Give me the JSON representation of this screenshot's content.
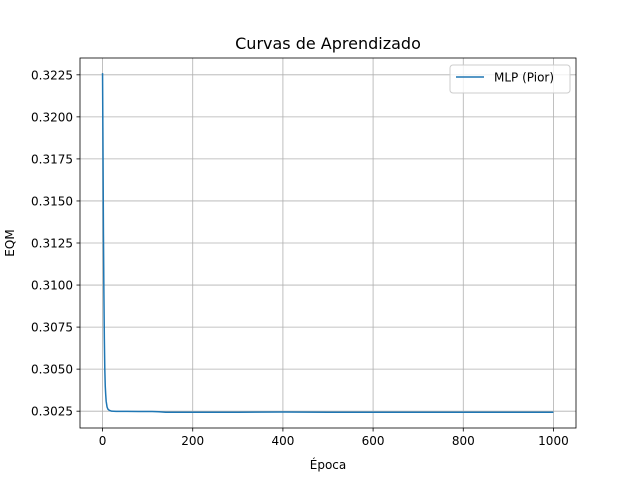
{
  "chart_data": {
    "type": "line",
    "title": "Curvas de Aprendizado",
    "xlabel": "Época",
    "ylabel": "EQM",
    "xlim": [
      -50,
      1050
    ],
    "ylim": [
      0.3015,
      0.3235
    ],
    "xticks": [
      0,
      200,
      400,
      600,
      800,
      1000
    ],
    "xtick_labels": [
      "0",
      "200",
      "400",
      "600",
      "800",
      "1000"
    ],
    "yticks": [
      0.3025,
      0.305,
      0.3075,
      0.31,
      0.3125,
      0.315,
      0.3175,
      0.32,
      0.3225
    ],
    "ytick_labels": [
      "0.3025",
      "0.3050",
      "0.3075",
      "0.3100",
      "0.3125",
      "0.3150",
      "0.3175",
      "0.3200",
      "0.3225"
    ],
    "grid": true,
    "legend_position": "top-right",
    "series": [
      {
        "name": "MLP (Pior)",
        "color": "#1f77b4",
        "x": [
          0,
          1,
          2,
          3,
          4,
          5,
          6,
          7,
          8,
          10,
          12,
          15,
          20,
          30,
          50,
          80,
          110,
          125,
          140,
          200,
          300,
          400,
          500,
          600,
          700,
          800,
          900,
          1000
        ],
        "y": [
          0.3226,
          0.318,
          0.313,
          0.3095,
          0.3068,
          0.305,
          0.304,
          0.3035,
          0.3031,
          0.30275,
          0.30262,
          0.30255,
          0.3025,
          0.30249,
          0.30249,
          0.30248,
          0.30248,
          0.30247,
          0.30244,
          0.30244,
          0.30244,
          0.30245,
          0.30244,
          0.30244,
          0.30244,
          0.30244,
          0.30244,
          0.30244
        ]
      }
    ]
  }
}
